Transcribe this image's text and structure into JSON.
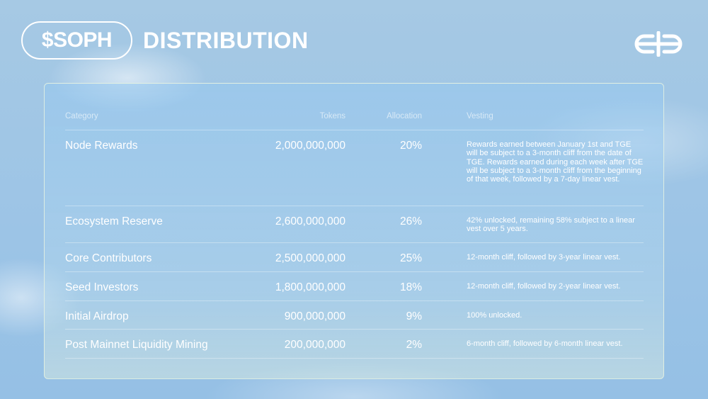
{
  "header": {
    "badge": "$SOPH",
    "title": "DISTRIBUTION"
  },
  "table": {
    "columns": [
      "Category",
      "Tokens",
      "Allocation",
      "Vesting"
    ],
    "rows": [
      [
        "Node Rewards",
        "2,000,000,000",
        "20%",
        "Rewards earned between January 1st and TGE will be subject to a 3-month cliff from the date of TGE. Rewards earned during each week after TGE will be subject to a 3-month cliff from the beginning of that week, followed by a 7-day linear vest."
      ],
      [
        "Ecosystem Reserve",
        "2,600,000,000",
        "26%",
        "42% unlocked, remaining 58% subject to a linear vest over 5 years."
      ],
      [
        "Core Contributors",
        "2,500,000,000",
        "25%",
        "12-month cliff, followed by 3-year linear vest."
      ],
      [
        "Seed Investors",
        "1,800,000,000",
        "18%",
        "12-month cliff, followed by 2-year linear vest."
      ],
      [
        "Initial Airdrop",
        "900,000,000",
        "9%",
        "100% unlocked."
      ],
      [
        "Post Mainnet Liquidity Mining",
        "200,000,000",
        "2%",
        "6-month cliff, followed by 6-month linear vest."
      ]
    ]
  }
}
